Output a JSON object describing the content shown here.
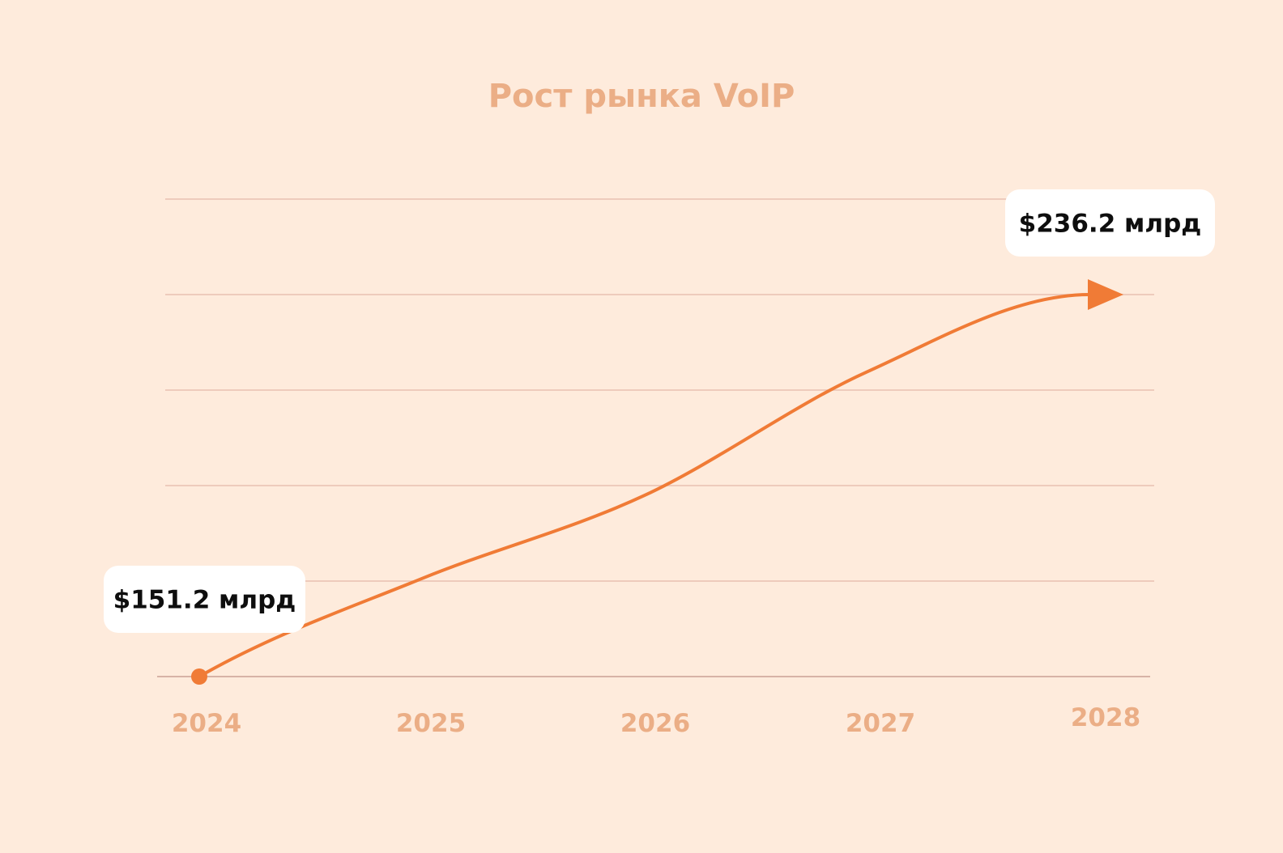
{
  "chart_data": {
    "type": "line",
    "title": "Рост рынка VoIP",
    "x": [
      "2024",
      "2025",
      "2026",
      "2027",
      "2028"
    ],
    "series": [
      {
        "values": [
          151.2,
          173,
          191.5,
          219,
          236.2
        ]
      }
    ],
    "ylim": [
      151.2,
      236.2
    ],
    "grid": true,
    "callouts": [
      {
        "x": "2024",
        "text": "$151.2 млрд"
      },
      {
        "x": "2028",
        "text": "$236.2 млрд"
      }
    ],
    "colors": {
      "background": "#FEEBDC",
      "line": "#F07B36",
      "grid": "#EECBBC",
      "axis": "#D7B3A6",
      "tick_label": "#EBAE86",
      "callout_bg": "#FFFFFF",
      "callout_text": "#0E0E0E"
    }
  }
}
